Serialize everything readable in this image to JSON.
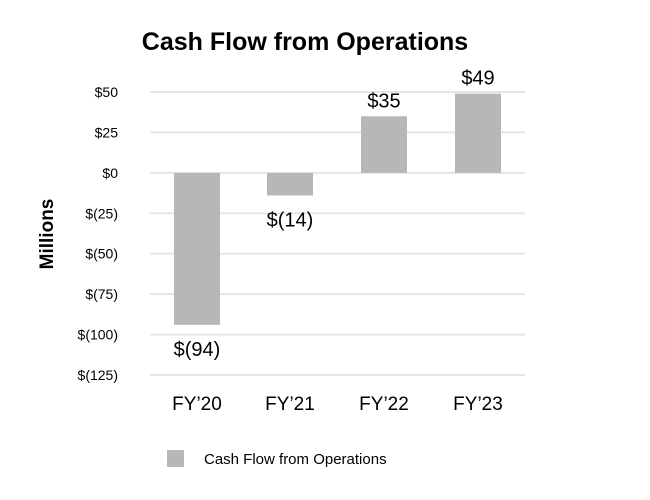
{
  "chart_data": {
    "type": "bar",
    "title": "Cash Flow from Operations",
    "ylabel": "Millions",
    "xlabel": "",
    "categories": [
      "FY’20",
      "FY’21",
      "FY’22",
      "FY’23"
    ],
    "series": [
      {
        "name": "Cash Flow from Operations",
        "values": [
          -94,
          -14,
          35,
          49
        ],
        "data_labels": [
          "$(94)",
          "$(14)",
          "$35",
          "$49"
        ],
        "color": "#b7b7b7"
      }
    ],
    "ylim": [
      -125,
      50
    ],
    "yticks": [
      50,
      25,
      0,
      -25,
      -50,
      -75,
      -100,
      -125
    ],
    "ytick_labels": [
      "$50",
      "$25",
      "$0",
      "$(25)",
      "$(50)",
      "$(75)",
      "$(100)",
      "$(125)"
    ],
    "grid": true,
    "grid_color": "#e5e5e5",
    "legend": "bottom"
  }
}
